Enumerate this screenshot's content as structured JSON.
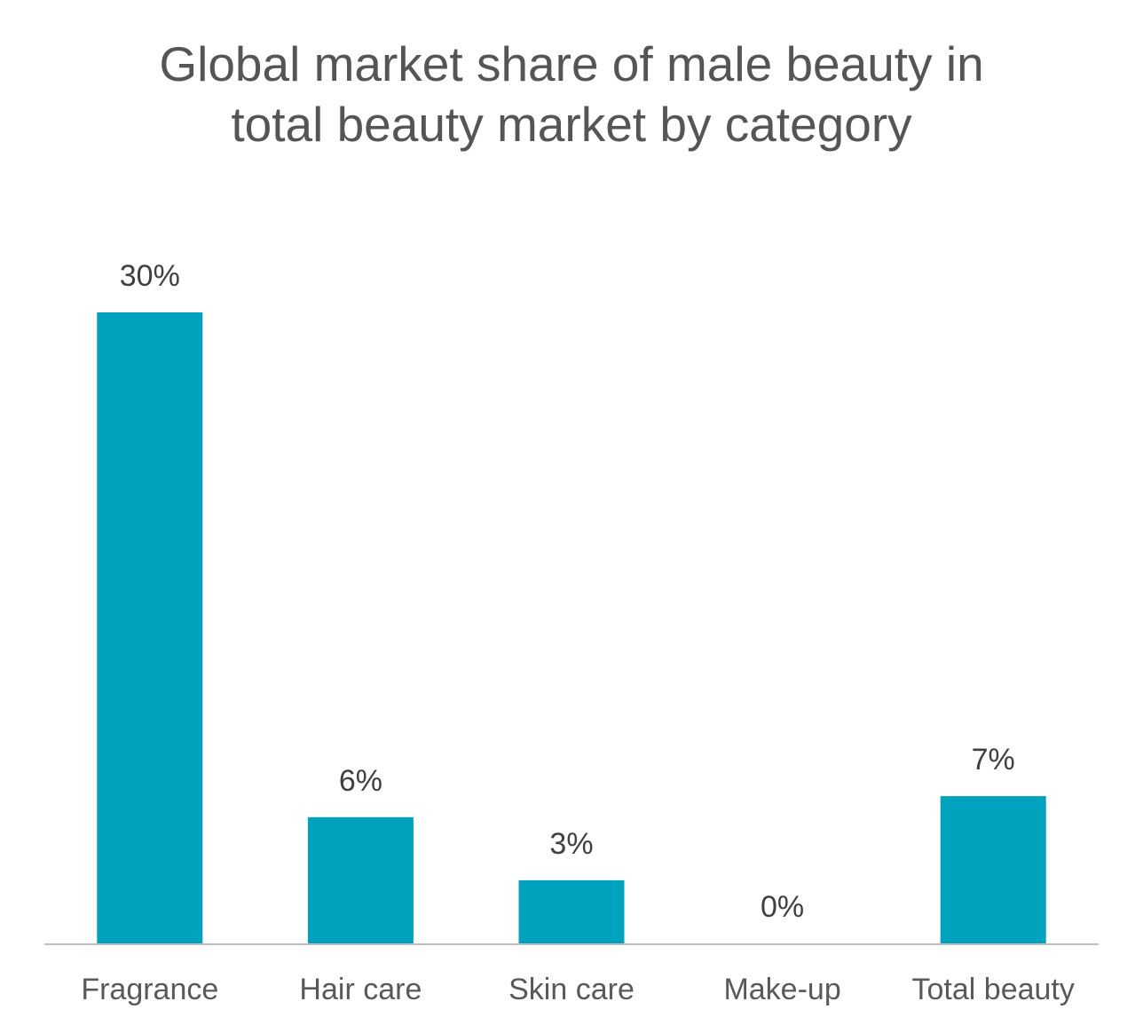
{
  "chart_data": {
    "type": "bar",
    "title_lines": [
      "Global market share of male beauty in",
      "total beauty market by category"
    ],
    "categories": [
      "Fragrance",
      "Hair care",
      "Skin care",
      "Make-up",
      "Total beauty"
    ],
    "values": [
      30,
      6,
      3,
      0,
      7
    ],
    "data_labels": [
      "30%",
      "6%",
      "3%",
      "0%",
      "7%"
    ],
    "unit": "%",
    "xlabel": "",
    "ylabel": "",
    "ylim": [
      0,
      30
    ],
    "grid": false,
    "legend": "none",
    "colors": {
      "bar": "#00A2BE",
      "axis": "#BFBFBF",
      "title": "#555555",
      "label": "#404040"
    }
  }
}
